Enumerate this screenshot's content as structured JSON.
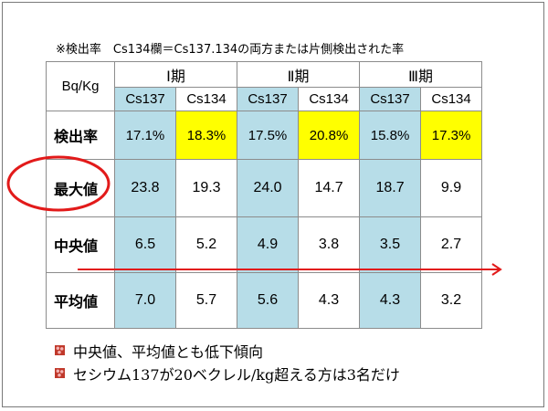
{
  "note": "※検出率　Cs134欄＝Cs137.134の両方または片側検出された率",
  "table": {
    "corner": "Bq/Kg",
    "periods": [
      "Ⅰ期",
      "Ⅱ期",
      "Ⅲ期"
    ],
    "sub": [
      "Cs137",
      "Cs134",
      "Cs137",
      "Cs134",
      "Cs137",
      "Cs134"
    ],
    "rows": [
      {
        "label": "検出率",
        "values": [
          "17.1%",
          "18.3%",
          "17.5%",
          "20.8%",
          "15.8%",
          "17.3%"
        ]
      },
      {
        "label": "最大値",
        "values": [
          "23.8",
          "19.3",
          "24.0",
          "14.7",
          "18.7",
          "9.9"
        ]
      },
      {
        "label": "中央値",
        "values": [
          "6.5",
          "5.2",
          "4.9",
          "3.8",
          "3.5",
          "2.7"
        ]
      },
      {
        "label": "平均値",
        "values": [
          "7.0",
          "5.7",
          "5.6",
          "4.3",
          "4.3",
          "3.2"
        ]
      }
    ]
  },
  "bullets": [
    "中央値、平均値とも低下傾向",
    "セシウム137が20ベクレル/kg超える方は3名だけ"
  ],
  "colors": {
    "cs137_fill": "#b7dde8",
    "cs134_rate_fill": "#ffff00",
    "annotation_red": "#e21a1a",
    "bullet_icon": "#c0392b"
  }
}
